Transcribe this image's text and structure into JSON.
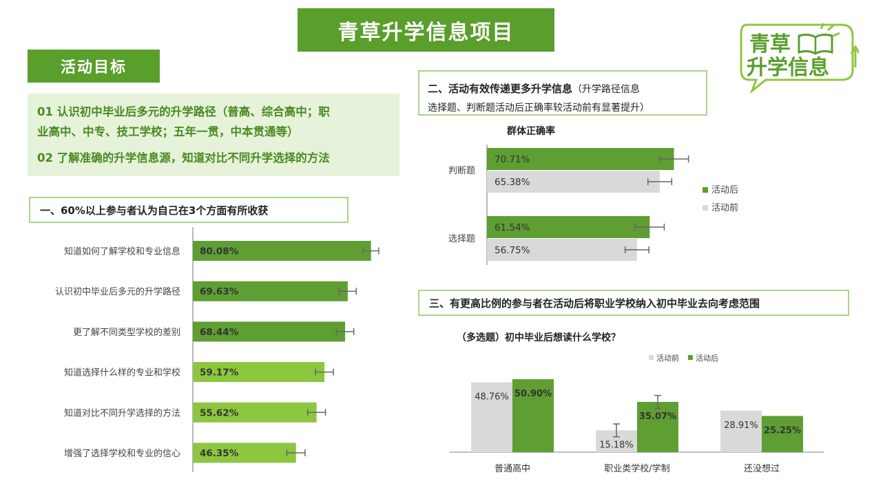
{
  "header": {
    "title": "青草升学信息项目",
    "logo_line1": "青草",
    "logo_line2": "升学信息"
  },
  "goals": {
    "title": "活动目标",
    "line1": "01  认识初中毕业后多元的升学路径（普高、综合高中；职",
    "line2": "业高中、中专、技工学校；五年一贯，中本贯通等）",
    "line3": "02  了解准确的升学信息源，知道对比不同升学选择的方法"
  },
  "section1": {
    "title": "一、60%以上参与者认为自己在3个方面有所收获"
  },
  "section2": {
    "title": "二、活动有效传递更多升学信息",
    "subtitle_a": "（升学路径信息",
    "subtitle_b": "选择题、判断题活动后正确率较活动前有显著提升）",
    "chart_title": "群体正确率"
  },
  "section3": {
    "title": "三、有更高比例的参与者在活动后将职业学校纳入初中毕业去向考虑范围",
    "chart_title": "（多选题）初中毕业后想读什么学校？"
  },
  "colors": {
    "brand_green": "#5a9e2c",
    "dark_green": "#5e9e33",
    "light_green": "#8dc63f",
    "gray": "#d9d9d9"
  },
  "chart_data": [
    {
      "type": "bar",
      "orientation": "horizontal",
      "categories": [
        "知道如何了解学校和专业信息",
        "认识初中毕业后多元的升学路径",
        "更了解不同类型学校的差别",
        "知道选择什么样的专业和学校",
        "知道对比不同升学选择的方法",
        "增强了选择学校和专业的信心"
      ],
      "values": [
        80.08,
        69.63,
        68.44,
        59.17,
        55.62,
        46.35
      ],
      "value_labels": [
        "80.08%",
        "69.63%",
        "68.44%",
        "59.17%",
        "55.62%",
        "46.35%"
      ],
      "error": [
        3.5,
        3.8,
        3.9,
        4.0,
        4.0,
        4.1
      ],
      "xlim": [
        0,
        100
      ]
    },
    {
      "type": "bar",
      "orientation": "horizontal",
      "title": "群体正确率",
      "categories": [
        "判断题",
        "选择题"
      ],
      "series": [
        {
          "name": "活动后",
          "values": [
            70.71,
            61.54
          ],
          "labels": [
            "70.71%",
            "61.54%"
          ],
          "error": [
            5.5,
            5.5
          ]
        },
        {
          "name": "活动前",
          "values": [
            65.38,
            56.75
          ],
          "labels": [
            "65.38%",
            "56.75%"
          ],
          "error": [
            4.5,
            4.5
          ]
        }
      ],
      "xlim": [
        0,
        100
      ],
      "legend": "right"
    },
    {
      "type": "bar",
      "orientation": "vertical",
      "title": "（多选题）初中毕业后想读什么学校？",
      "categories": [
        "普通高中",
        "职业类学校/学制",
        "还没想过"
      ],
      "series": [
        {
          "name": "活动前",
          "values": [
            48.76,
            15.18,
            28.91
          ],
          "labels": [
            "48.76%",
            "15.18%",
            "28.91%"
          ]
        },
        {
          "name": "活动后",
          "values": [
            50.9,
            35.07,
            25.25
          ],
          "labels": [
            "50.90%",
            "35.07%",
            "25.25%"
          ]
        }
      ],
      "ylim": [
        0,
        60
      ],
      "legend": "top-right"
    }
  ]
}
